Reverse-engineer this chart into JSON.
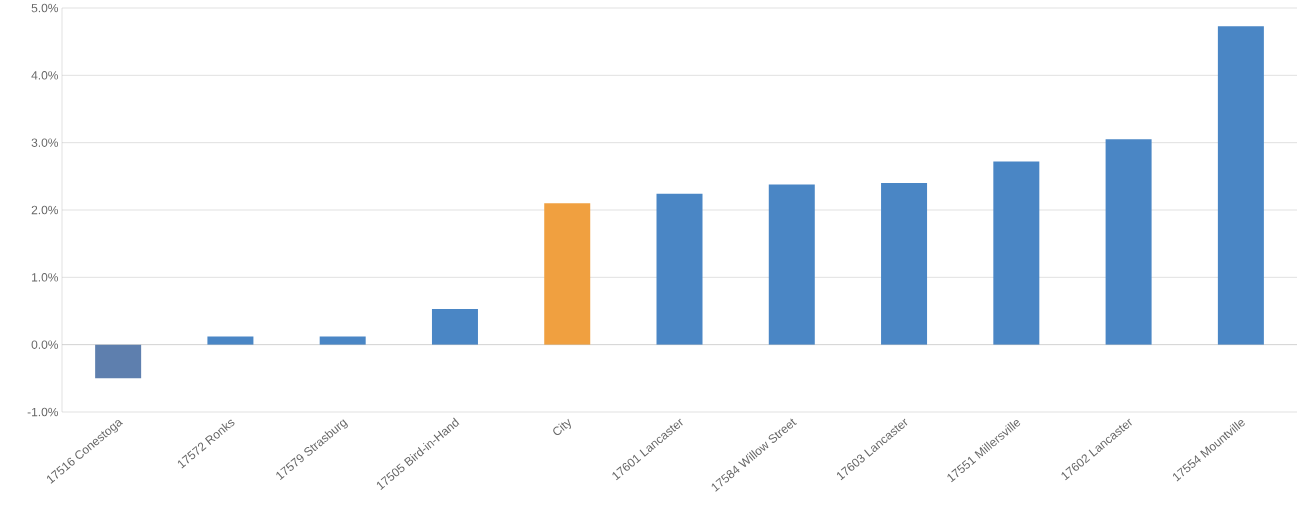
{
  "chart_data": {
    "type": "bar",
    "categories": [
      "17516 Conestoga",
      "17572 Ronks",
      "17579 Strasburg",
      "17505 Bird-in-Hand",
      "City",
      "17601 Lancaster",
      "17584 Willow Street",
      "17603 Lancaster",
      "17551 Millersville",
      "17602 Lancaster",
      "17554 Mountville"
    ],
    "values": [
      -0.5,
      0.12,
      0.12,
      0.53,
      2.1,
      2.24,
      2.38,
      2.4,
      2.72,
      3.05,
      4.73
    ],
    "colors": [
      "#5e7fae",
      "#4a86c5",
      "#4a86c5",
      "#4a86c5",
      "#f0a040",
      "#4a86c5",
      "#4a86c5",
      "#4a86c5",
      "#4a86c5",
      "#4a86c5",
      "#4a86c5"
    ],
    "ylim": [
      -1,
      5
    ],
    "yticks": [
      {
        "value": -1,
        "label": "-1.0%"
      },
      {
        "value": 0,
        "label": "0.0%"
      },
      {
        "value": 1,
        "label": "1.0%"
      },
      {
        "value": 2,
        "label": "2.0%"
      },
      {
        "value": 3,
        "label": "3.0%"
      },
      {
        "value": 4,
        "label": "4.0%"
      },
      {
        "value": 5,
        "label": "5.0%"
      }
    ],
    "grid": "y"
  }
}
